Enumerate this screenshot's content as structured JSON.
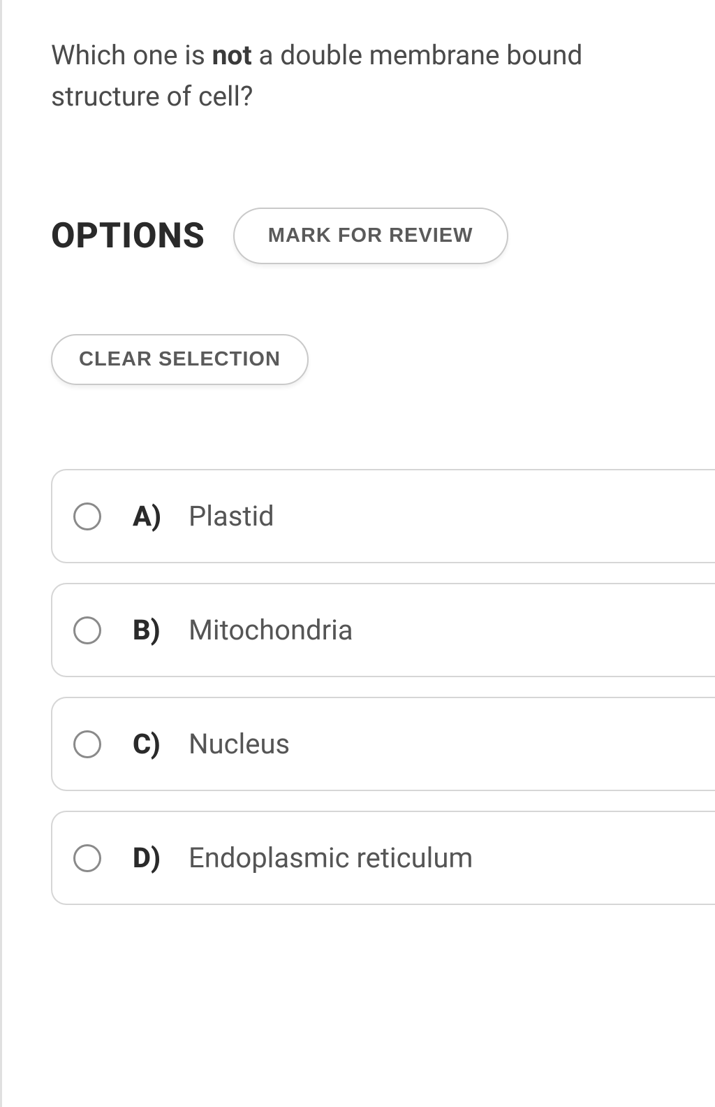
{
  "question": {
    "prefix": "Which one is ",
    "bold": "not",
    "suffix": " a double membrane bound structure of cell?"
  },
  "labels": {
    "options_heading": "OPTIONS",
    "mark_for_review": "MARK FOR REVIEW",
    "clear_selection": "CLEAR SELECTION"
  },
  "options": [
    {
      "letter": "A)",
      "text": "Plastid"
    },
    {
      "letter": "B)",
      "text": "Mitochondria"
    },
    {
      "letter": "C)",
      "text": "Nucleus"
    },
    {
      "letter": "D)",
      "text": "Endoplasmic reticulum"
    }
  ],
  "colors": {
    "text_primary": "#3a3a3a",
    "text_secondary": "#555555",
    "border": "#d6d6d6",
    "pill_border": "#c9c9c9",
    "radio_border": "#8a8a8a",
    "background": "#ffffff"
  }
}
